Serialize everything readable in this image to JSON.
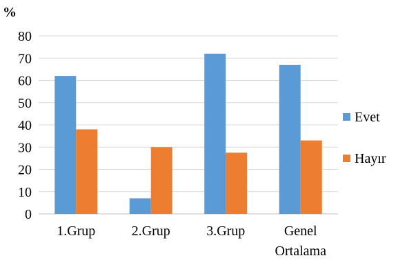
{
  "chart_data": {
    "type": "bar",
    "title": "",
    "xlabel": "",
    "ylabel": "%",
    "ylim": [
      0,
      80
    ],
    "yticks": [
      0,
      10,
      20,
      30,
      40,
      50,
      60,
      70,
      80
    ],
    "grid": true,
    "legend_position": "right",
    "categories": [
      [
        "1.Grup"
      ],
      [
        "2.Grup"
      ],
      [
        "3.Grup"
      ],
      [
        "Genel",
        "Ortalama"
      ]
    ],
    "series": [
      {
        "name": "Evet",
        "color": "#5B9BD5",
        "values": [
          62,
          7,
          72,
          67
        ]
      },
      {
        "name": "Hayır",
        "color": "#ED7D31",
        "values": [
          38,
          30,
          27.5,
          33
        ]
      }
    ]
  }
}
